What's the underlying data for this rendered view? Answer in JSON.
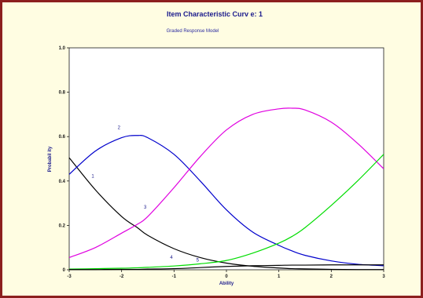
{
  "chart_data": {
    "type": "line",
    "title": "Item Characteristic Curv e: 1",
    "subtitle": "Graded Response Model",
    "xlabel": "Ability",
    "ylabel": "Probabil ity",
    "xlim": [
      -3,
      3
    ],
    "ylim": [
      0,
      1
    ],
    "x_ticks": [
      -3,
      -2,
      -1,
      0,
      1,
      2,
      3
    ],
    "y_ticks": [
      0,
      0.2,
      0.4,
      0.6,
      0.8,
      1.0
    ],
    "x_tick_labels": [
      "-3",
      "-2",
      "-1",
      "0",
      "1",
      "2",
      "3"
    ],
    "y_tick_labels": [
      "0",
      "0.2",
      "0.4",
      "0.6",
      "0.8",
      "1.0"
    ],
    "grid": false,
    "x": [
      -3.0,
      -2.5,
      -2.0,
      -1.7,
      -1.5,
      -1.0,
      -0.5,
      0.0,
      0.5,
      1.0,
      1.25,
      1.5,
      2.0,
      2.5,
      3.0
    ],
    "series": [
      {
        "name": "1",
        "color": "#000000",
        "label_at": [
          -2.55,
          0.415
        ],
        "values": [
          0.505,
          0.36,
          0.24,
          0.19,
          0.155,
          0.095,
          0.055,
          0.03,
          0.016,
          0.008,
          0.005,
          0.004,
          0.002,
          0.001,
          0.001
        ]
      },
      {
        "name": "2",
        "color": "#0000cc",
        "label_at": [
          -2.05,
          0.635
        ],
        "values": [
          0.43,
          0.535,
          0.595,
          0.605,
          0.595,
          0.52,
          0.4,
          0.27,
          0.17,
          0.11,
          0.085,
          0.065,
          0.04,
          0.025,
          0.018
        ]
      },
      {
        "name": "3",
        "color": "#e000e0",
        "label_at": [
          -1.55,
          0.275
        ],
        "values": [
          0.055,
          0.1,
          0.165,
          0.205,
          0.24,
          0.37,
          0.51,
          0.63,
          0.7,
          0.725,
          0.728,
          0.72,
          0.665,
          0.57,
          0.455
        ]
      },
      {
        "name": "4",
        "color": "#00dd00",
        "label_at": [
          -1.05,
          0.05
        ],
        "values": [
          0.003,
          0.005,
          0.007,
          0.009,
          0.011,
          0.017,
          0.027,
          0.042,
          0.075,
          0.12,
          0.15,
          0.19,
          0.29,
          0.4,
          0.52
        ]
      },
      {
        "name": "5",
        "color": "#000000",
        "label_at": [
          -0.55,
          0.037
        ],
        "values": [
          0.001,
          0.001,
          0.002,
          0.002,
          0.003,
          0.005,
          0.01,
          0.015,
          0.018,
          0.02,
          0.021,
          0.021,
          0.022,
          0.022,
          0.022
        ]
      }
    ]
  }
}
